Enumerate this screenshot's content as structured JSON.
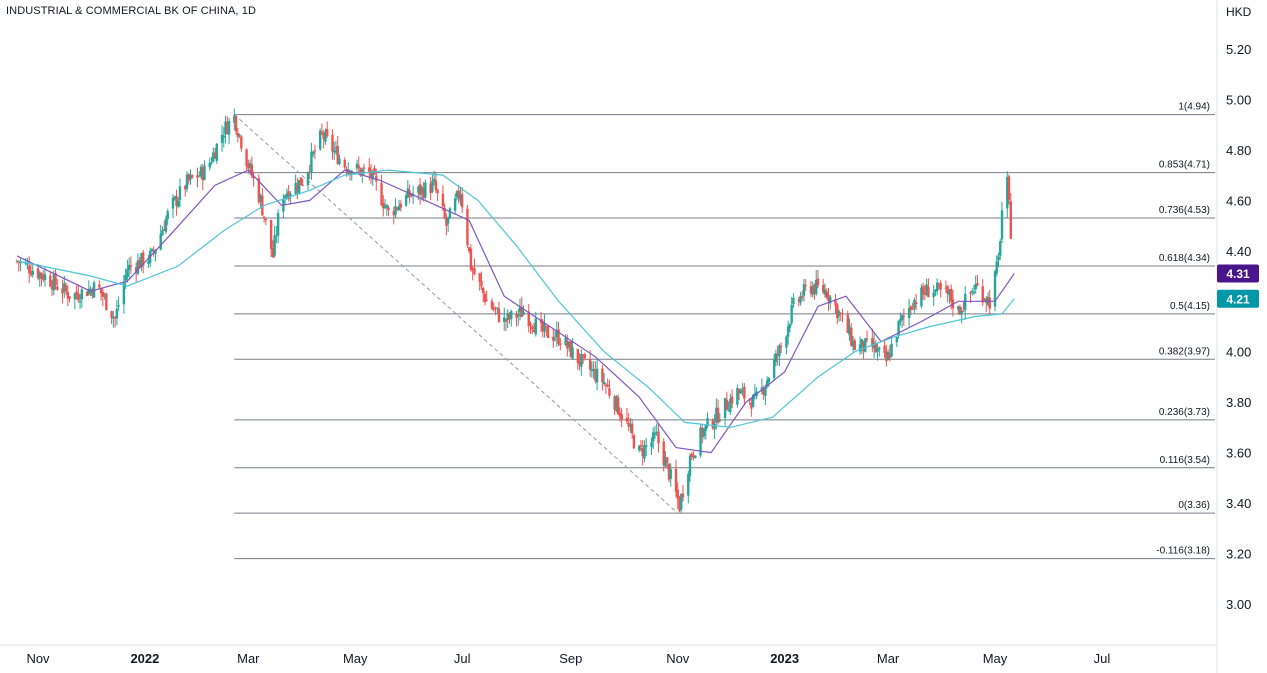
{
  "title": "INDUSTRIAL & COMMERCIAL BK OF CHINA, 1D",
  "currency": "HKD",
  "colors": {
    "up": "#26a69a",
    "down": "#ef5350",
    "ma_fast": "#7e57c2",
    "ma_slow": "#4dc6d6",
    "fib_line": "#787b86",
    "badge_fast": "#4a148c",
    "badge_slow": "#0097a7"
  },
  "chart_data": {
    "type": "candlestick",
    "x_ticks": [
      {
        "label": "Nov",
        "date": "2021-11-01"
      },
      {
        "label": "2022",
        "date": "2022-01-01",
        "bold": true
      },
      {
        "label": "Mar",
        "date": "2022-03-01"
      },
      {
        "label": "May",
        "date": "2022-05-01"
      },
      {
        "label": "Jul",
        "date": "2022-07-01"
      },
      {
        "label": "Sep",
        "date": "2022-09-01"
      },
      {
        "label": "Nov",
        "date": "2022-11-01"
      },
      {
        "label": "2023",
        "date": "2023-01-01",
        "bold": true
      },
      {
        "label": "Mar",
        "date": "2023-03-01"
      },
      {
        "label": "May",
        "date": "2023-05-01"
      },
      {
        "label": "Jul",
        "date": "2023-07-01"
      }
    ],
    "y_ticks": [
      "5.20",
      "5.00",
      "4.80",
      "4.60",
      "4.40",
      "4.20",
      "4.00",
      "3.80",
      "3.60",
      "3.40",
      "3.20",
      "3.00"
    ],
    "ylim": [
      2.85,
      5.35
    ],
    "close_path": [
      [
        "2021-10-20",
        4.36
      ],
      [
        "2021-11-05",
        4.3
      ],
      [
        "2021-11-20",
        4.22
      ],
      [
        "2021-12-05",
        4.26
      ],
      [
        "2021-12-15",
        4.13
      ],
      [
        "2021-12-22",
        4.33
      ],
      [
        "2022-01-05",
        4.38
      ],
      [
        "2022-01-15",
        4.56
      ],
      [
        "2022-01-25",
        4.67
      ],
      [
        "2022-02-05",
        4.72
      ],
      [
        "2022-02-15",
        4.88
      ],
      [
        "2022-02-21",
        4.93
      ],
      [
        "2022-03-01",
        4.74
      ],
      [
        "2022-03-08",
        4.6
      ],
      [
        "2022-03-15",
        4.38
      ],
      [
        "2022-03-20",
        4.62
      ],
      [
        "2022-04-01",
        4.68
      ],
      [
        "2022-04-12",
        4.86
      ],
      [
        "2022-04-25",
        4.74
      ],
      [
        "2022-05-10",
        4.7
      ],
      [
        "2022-05-20",
        4.55
      ],
      [
        "2022-06-01",
        4.62
      ],
      [
        "2022-06-15",
        4.66
      ],
      [
        "2022-06-22",
        4.5
      ],
      [
        "2022-06-30",
        4.64
      ],
      [
        "2022-07-06",
        4.34
      ],
      [
        "2022-07-15",
        4.2
      ],
      [
        "2022-07-25",
        4.12
      ],
      [
        "2022-08-05",
        4.16
      ],
      [
        "2022-08-15",
        4.08
      ],
      [
        "2022-08-25",
        4.06
      ],
      [
        "2022-09-05",
        3.97
      ],
      [
        "2022-09-20",
        3.88
      ],
      [
        "2022-10-01",
        3.74
      ],
      [
        "2022-10-10",
        3.6
      ],
      [
        "2022-10-20",
        3.66
      ],
      [
        "2022-10-28",
        3.5
      ],
      [
        "2022-11-02",
        3.39
      ],
      [
        "2022-11-08",
        3.58
      ],
      [
        "2022-11-15",
        3.68
      ],
      [
        "2022-11-25",
        3.76
      ],
      [
        "2022-12-05",
        3.84
      ],
      [
        "2022-12-15",
        3.8
      ],
      [
        "2022-12-20",
        3.86
      ],
      [
        "2022-12-30",
        4.02
      ],
      [
        "2023-01-06",
        4.18
      ],
      [
        "2023-01-15",
        4.26
      ],
      [
        "2023-01-25",
        4.24
      ],
      [
        "2023-02-02",
        4.14
      ],
      [
        "2023-02-10",
        4.02
      ],
      [
        "2023-02-20",
        4.02
      ],
      [
        "2023-02-28",
        3.96
      ],
      [
        "2023-03-07",
        4.1
      ],
      [
        "2023-03-15",
        4.2
      ],
      [
        "2023-03-25",
        4.25
      ],
      [
        "2023-04-05",
        4.22
      ],
      [
        "2023-04-10",
        4.16
      ],
      [
        "2023-04-20",
        4.26
      ],
      [
        "2023-04-28",
        4.2
      ],
      [
        "2023-05-03",
        4.36
      ],
      [
        "2023-05-05",
        4.56
      ],
      [
        "2023-05-08",
        4.66
      ],
      [
        "2023-05-10",
        4.48
      ]
    ],
    "series": [
      {
        "name": "",
        "type": "ma_fast",
        "points": [
          [
            "2021-10-20",
            4.38
          ],
          [
            "2021-12-01",
            4.24
          ],
          [
            "2021-12-22",
            4.28
          ],
          [
            "2022-01-15",
            4.46
          ],
          [
            "2022-02-10",
            4.66
          ],
          [
            "2022-03-01",
            4.72
          ],
          [
            "2022-03-20",
            4.58
          ],
          [
            "2022-04-05",
            4.6
          ],
          [
            "2022-04-25",
            4.72
          ],
          [
            "2022-05-15",
            4.68
          ],
          [
            "2022-06-10",
            4.6
          ],
          [
            "2022-07-05",
            4.52
          ],
          [
            "2022-07-25",
            4.22
          ],
          [
            "2022-08-20",
            4.1
          ],
          [
            "2022-09-15",
            3.98
          ],
          [
            "2022-10-10",
            3.82
          ],
          [
            "2022-10-31",
            3.62
          ],
          [
            "2022-11-20",
            3.6
          ],
          [
            "2022-12-10",
            3.8
          ],
          [
            "2023-01-01",
            3.92
          ],
          [
            "2023-01-20",
            4.18
          ],
          [
            "2023-02-05",
            4.22
          ],
          [
            "2023-02-25",
            4.04
          ],
          [
            "2023-03-20",
            4.12
          ],
          [
            "2023-04-10",
            4.2
          ],
          [
            "2023-05-01",
            4.2
          ],
          [
            "2023-05-12",
            4.31
          ]
        ],
        "last": "4.31"
      },
      {
        "name": "",
        "type": "ma_slow",
        "points": [
          [
            "2021-10-20",
            4.36
          ],
          [
            "2021-12-01",
            4.3
          ],
          [
            "2021-12-22",
            4.26
          ],
          [
            "2022-01-20",
            4.34
          ],
          [
            "2022-02-15",
            4.48
          ],
          [
            "2022-03-10",
            4.58
          ],
          [
            "2022-04-05",
            4.64
          ],
          [
            "2022-04-25",
            4.7
          ],
          [
            "2022-05-20",
            4.72
          ],
          [
            "2022-06-20",
            4.7
          ],
          [
            "2022-07-10",
            4.6
          ],
          [
            "2022-08-01",
            4.42
          ],
          [
            "2022-08-25",
            4.2
          ],
          [
            "2022-09-20",
            4.0
          ],
          [
            "2022-10-15",
            3.86
          ],
          [
            "2022-11-05",
            3.72
          ],
          [
            "2022-12-01",
            3.7
          ],
          [
            "2022-12-25",
            3.74
          ],
          [
            "2023-01-20",
            3.9
          ],
          [
            "2023-02-10",
            4.0
          ],
          [
            "2023-03-05",
            4.06
          ],
          [
            "2023-03-25",
            4.1
          ],
          [
            "2023-04-20",
            4.14
          ],
          [
            "2023-05-05",
            4.15
          ],
          [
            "2023-05-12",
            4.21
          ]
        ],
        "last": "4.21"
      }
    ],
    "fib_levels": [
      {
        "label": "1(4.94)",
        "value": 4.94
      },
      {
        "label": "0.853(4.71)",
        "value": 4.71
      },
      {
        "label": "0.736(4.53)",
        "value": 4.53
      },
      {
        "label": "0.618(4.34)",
        "value": 4.34
      },
      {
        "label": "0.5(4.15)",
        "value": 4.15
      },
      {
        "label": "0.382(3.97)",
        "value": 3.97
      },
      {
        "label": "0.236(3.73)",
        "value": 3.73
      },
      {
        "label": "0.116(3.54)",
        "value": 3.54
      },
      {
        "label": "0(3.36)",
        "value": 3.36
      },
      {
        "label": "-0.116(3.18)",
        "value": 3.18
      }
    ],
    "trend_line": {
      "from": [
        "2022-02-21",
        4.94
      ],
      "to": [
        "2022-11-01",
        3.36
      ]
    },
    "grid": false
  }
}
